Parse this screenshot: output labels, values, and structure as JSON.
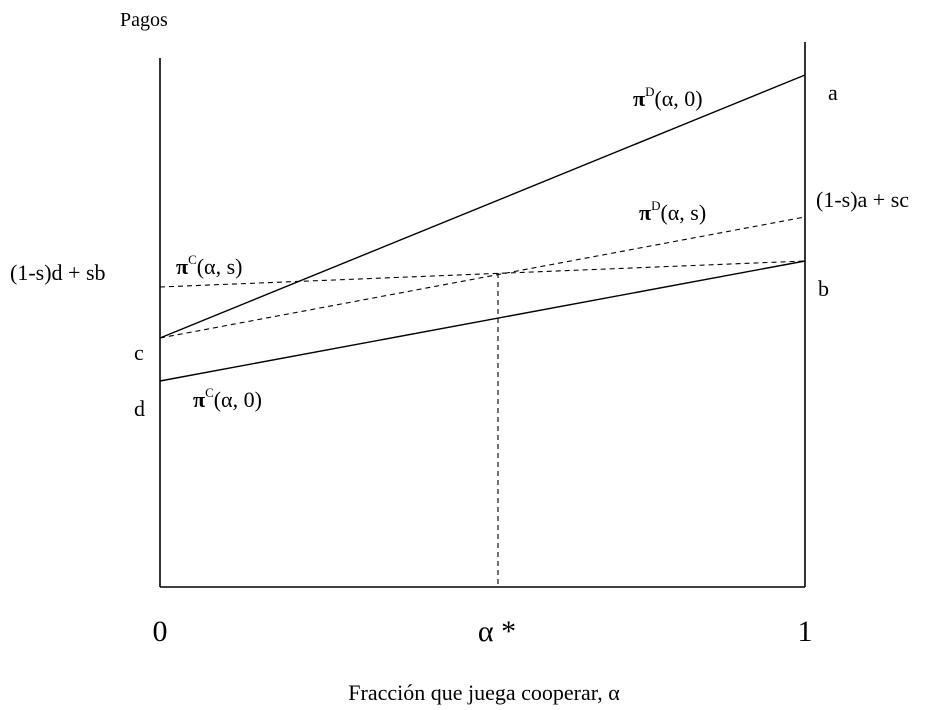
{
  "y_axis_title": "Pagos",
  "x_axis_title": "Fracción que juega cooperar, α",
  "x_ticks": {
    "zero": "0",
    "alpha_star": "α *",
    "one": "1"
  },
  "left_labels": {
    "mixed_c": "(1-s)d + sb",
    "c": "c",
    "d": "d"
  },
  "right_labels": {
    "a": "a",
    "mixed_d": "(1-s)a + sc",
    "b": "b"
  },
  "curves": {
    "defect_pure": {
      "pi": "π",
      "sup": "D",
      "args": "(α, 0)"
    },
    "defect_mixed": {
      "pi": "π",
      "sup": "D",
      "args": "(α, s)"
    },
    "coop_mixed": {
      "pi": "π",
      "sup": "C",
      "args": "(α, s)"
    },
    "coop_pure": {
      "pi": "π",
      "sup": "C",
      "args": "(α, 0)"
    }
  }
}
